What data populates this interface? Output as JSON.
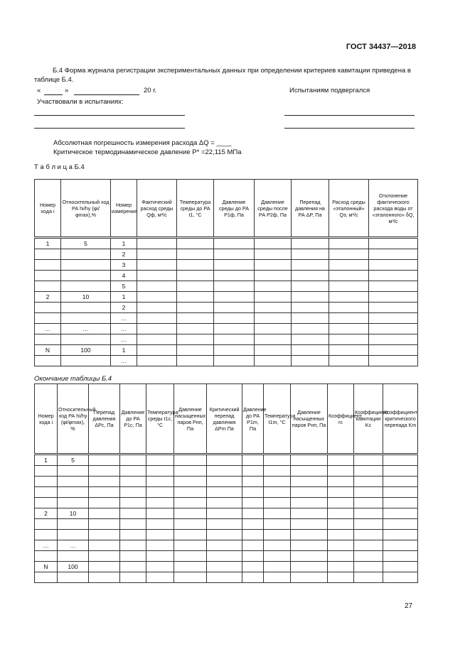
{
  "header": {
    "standard": "ГОСТ 34437—2018"
  },
  "intro": "Б.4 Форма журнала регистрации экспериментальных данных при определении критериев кавитации приведена в таблице Б.4.",
  "form": {
    "quote_open": "«",
    "quote_close": "»",
    "year": "20   г.",
    "tested": "Испытаниям подвергался",
    "participants": "Участвовали в испытаниях:"
  },
  "notes": {
    "flow_error": "Абсолютная погрешность измерения расхода ΔQ = ____",
    "critical_pressure": "Критическое термодинамическое давление P* =22,115 МПа"
  },
  "table1": {
    "caption": "Т а б л и ц а  Б.4",
    "headers": [
      "Номер хода i",
      "Относительный ход РА hi/hy (φi/φmax),%",
      "Номер измерения",
      "Фактический расход среды Qф, м³/с",
      "Температура среды до РА t1, °С",
      "Давление среды до РА P1ф, Па",
      "Давление среды после РА P2ф, Па",
      "Перепад давления на РА ΔP, Па",
      "Расход среды «эталонный» Qэ, м³/с",
      "Отклонение фактического расхода воды от «эталонного» δQ, м³/с"
    ],
    "rows": [
      [
        "1",
        "5",
        "1"
      ],
      [
        "",
        "",
        "2"
      ],
      [
        "",
        "",
        "3"
      ],
      [
        "",
        "",
        "4"
      ],
      [
        "",
        "",
        "5"
      ],
      [
        "2",
        "10",
        "1"
      ],
      [
        "",
        "",
        "2"
      ],
      [
        "",
        "",
        "…"
      ],
      [
        "…",
        "…",
        "…"
      ],
      [
        "",
        "",
        "…"
      ],
      [
        "N",
        "100",
        "1"
      ],
      [
        "",
        "",
        "…"
      ]
    ]
  },
  "table2": {
    "caption": "Окончание таблицы Б.4",
    "headers": [
      "Номер хода i",
      "Относительный ход РА hi/hy (φi/φmax), %",
      "Перепад давления ΔPс, Па",
      "Давление до РА P1c, Па",
      "Температура среды t1c, °С",
      "Давление насыщенных паров Pнп, Па",
      "Критический перепад давления ΔPm Па",
      "Давление до РА P1m, Па",
      "Температура t1m, °С",
      "Давление насыщенных паров Pнп, Па",
      "Коэффициент rc",
      "Коэффициент кавитации Kc",
      "Коэффициент критического перепада Km"
    ],
    "rows": [
      [
        "1",
        "5"
      ],
      [
        "",
        ""
      ],
      [
        "",
        ""
      ],
      [
        "",
        ""
      ],
      [
        "",
        ""
      ],
      [
        "2",
        "10"
      ],
      [
        "",
        ""
      ],
      [
        "",
        ""
      ],
      [
        "…",
        "…"
      ],
      [
        "",
        ""
      ],
      [
        "N",
        "100"
      ],
      [
        "",
        ""
      ]
    ]
  },
  "footer": {
    "page_number": "27"
  }
}
